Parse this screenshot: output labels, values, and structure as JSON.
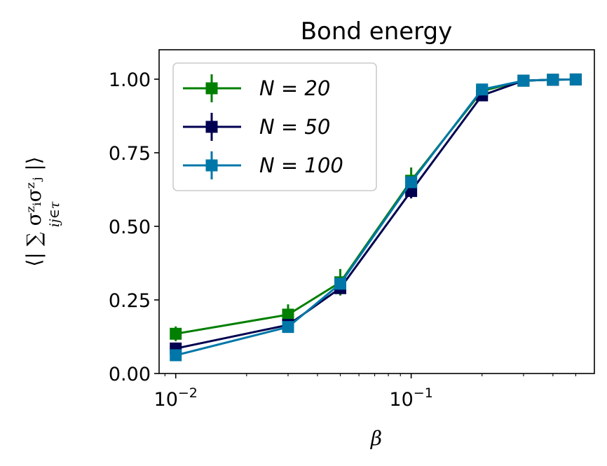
{
  "chart_data": {
    "type": "line",
    "title": "Bond energy",
    "xlabel": "β",
    "ylabel": "⟨| ∑ σᶻᵢσᶻⱼ |⟩",
    "ylabel_subscript": "ij∈τ",
    "x_scale": "log",
    "xlim": [
      0.0085,
      0.6
    ],
    "ylim": [
      0.0,
      1.1
    ],
    "x_ticks": [
      {
        "value": 0.01,
        "base": "10",
        "exp": "−2"
      },
      {
        "value": 0.1,
        "base": "10",
        "exp": "−1"
      }
    ],
    "y_ticks": [
      {
        "value": 0.0,
        "label": "0.00"
      },
      {
        "value": 0.25,
        "label": "0.25"
      },
      {
        "value": 0.5,
        "label": "0.50"
      },
      {
        "value": 0.75,
        "label": "0.75"
      },
      {
        "value": 1.0,
        "label": "1.00"
      }
    ],
    "grid": false,
    "legend_position": "upper-left",
    "series": [
      {
        "name": "N = 20",
        "color": "#007f00",
        "x": [
          0.01,
          0.03,
          0.05,
          0.1,
          0.2,
          0.3,
          0.4,
          0.5
        ],
        "y": [
          0.135,
          0.2,
          0.31,
          0.655,
          0.96,
          0.995,
          0.998,
          0.999
        ],
        "yerr": [
          0.025,
          0.035,
          0.045,
          0.045,
          0.01,
          0.005,
          0.003,
          0.002
        ]
      },
      {
        "name": "N = 50",
        "color": "#000050",
        "x": [
          0.01,
          0.03,
          0.05,
          0.1,
          0.2,
          0.3,
          0.4,
          0.5
        ],
        "y": [
          0.085,
          0.165,
          0.29,
          0.62,
          0.945,
          0.995,
          0.998,
          0.999
        ],
        "yerr": [
          0.02,
          0.02,
          0.02,
          0.025,
          0.01,
          0.005,
          0.003,
          0.002
        ]
      },
      {
        "name": "N = 100",
        "color": "#0077a8",
        "x": [
          0.01,
          0.03,
          0.05,
          0.1,
          0.2,
          0.3,
          0.4,
          0.5
        ],
        "y": [
          0.062,
          0.158,
          0.305,
          0.65,
          0.965,
          0.995,
          0.998,
          0.999
        ],
        "yerr": [
          0.015,
          0.015,
          0.02,
          0.02,
          0.01,
          0.005,
          0.003,
          0.002
        ]
      }
    ]
  }
}
